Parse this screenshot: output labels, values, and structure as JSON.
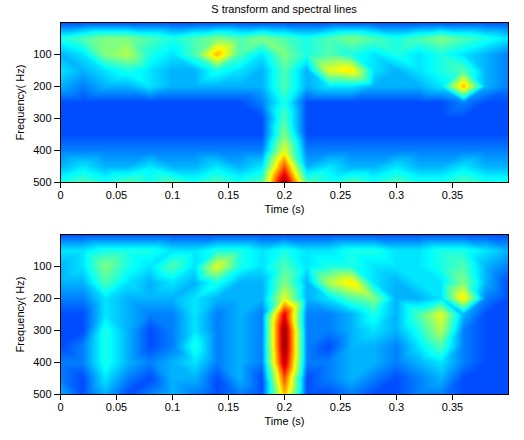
{
  "chart_data": [
    {
      "type": "heatmap",
      "title": "S transform and spectral lines",
      "x_label": "Time (s)",
      "y_label": "Frequency( Hz)",
      "xlim": [
        0,
        0.4
      ],
      "ylim": [
        0,
        500
      ],
      "xticks": [
        0,
        0.05,
        0.1,
        0.15,
        0.2,
        0.25,
        0.3,
        0.35
      ],
      "yticks": [
        100,
        200,
        300,
        400,
        500
      ],
      "zlim": [
        0,
        1
      ],
      "x": [
        0,
        0.02,
        0.04,
        0.06,
        0.08,
        0.1,
        0.12,
        0.14,
        0.16,
        0.18,
        0.2,
        0.22,
        0.24,
        0.26,
        0.28,
        0.3,
        0.32,
        0.34,
        0.36,
        0.38,
        0.4
      ],
      "y": [
        0,
        50,
        100,
        150,
        200,
        250,
        300,
        350,
        400,
        450,
        500
      ],
      "z": [
        [
          0.2,
          0.2,
          0.2,
          0.2,
          0.2,
          0.2,
          0.2,
          0.2,
          0.2,
          0.2,
          0.2,
          0.2,
          0.2,
          0.2,
          0.2,
          0.2,
          0.2,
          0.2,
          0.2,
          0.2,
          0.2
        ],
        [
          0.4,
          0.45,
          0.5,
          0.5,
          0.45,
          0.4,
          0.45,
          0.5,
          0.45,
          0.5,
          0.45,
          0.4,
          0.45,
          0.5,
          0.45,
          0.4,
          0.45,
          0.5,
          0.45,
          0.4,
          0.35
        ],
        [
          0.3,
          0.35,
          0.5,
          0.55,
          0.4,
          0.35,
          0.45,
          0.7,
          0.45,
          0.35,
          0.5,
          0.4,
          0.45,
          0.4,
          0.35,
          0.4,
          0.35,
          0.4,
          0.35,
          0.3,
          0.25
        ],
        [
          0.35,
          0.3,
          0.35,
          0.4,
          0.35,
          0.3,
          0.3,
          0.4,
          0.35,
          0.3,
          0.45,
          0.3,
          0.6,
          0.65,
          0.35,
          0.3,
          0.35,
          0.4,
          0.45,
          0.3,
          0.25
        ],
        [
          0.3,
          0.25,
          0.3,
          0.3,
          0.35,
          0.3,
          0.3,
          0.3,
          0.3,
          0.3,
          0.45,
          0.3,
          0.35,
          0.35,
          0.3,
          0.3,
          0.3,
          0.35,
          0.7,
          0.3,
          0.25
        ],
        [
          0.2,
          0.2,
          0.2,
          0.2,
          0.2,
          0.2,
          0.2,
          0.2,
          0.2,
          0.25,
          0.4,
          0.2,
          0.2,
          0.2,
          0.2,
          0.2,
          0.2,
          0.2,
          0.25,
          0.2,
          0.2
        ],
        [
          0.2,
          0.2,
          0.2,
          0.2,
          0.2,
          0.2,
          0.2,
          0.2,
          0.2,
          0.2,
          0.45,
          0.2,
          0.2,
          0.2,
          0.2,
          0.2,
          0.2,
          0.2,
          0.2,
          0.2,
          0.2
        ],
        [
          0.2,
          0.2,
          0.2,
          0.2,
          0.2,
          0.2,
          0.2,
          0.2,
          0.2,
          0.2,
          0.5,
          0.2,
          0.2,
          0.2,
          0.2,
          0.2,
          0.2,
          0.2,
          0.2,
          0.2,
          0.2
        ],
        [
          0.25,
          0.25,
          0.25,
          0.25,
          0.25,
          0.25,
          0.25,
          0.25,
          0.25,
          0.25,
          0.6,
          0.25,
          0.25,
          0.25,
          0.25,
          0.25,
          0.25,
          0.25,
          0.25,
          0.25,
          0.25
        ],
        [
          0.3,
          0.35,
          0.3,
          0.3,
          0.35,
          0.3,
          0.3,
          0.35,
          0.3,
          0.35,
          0.8,
          0.3,
          0.35,
          0.3,
          0.3,
          0.35,
          0.3,
          0.3,
          0.35,
          0.3,
          0.3
        ],
        [
          0.4,
          0.45,
          0.4,
          0.45,
          0.4,
          0.45,
          0.4,
          0.45,
          0.4,
          0.45,
          1.0,
          0.45,
          0.4,
          0.45,
          0.4,
          0.45,
          0.4,
          0.4,
          0.45,
          0.4,
          0.4
        ]
      ]
    },
    {
      "type": "heatmap",
      "x_label": "Time (s)",
      "y_label": "Frequency( Hz)",
      "xlim": [
        0,
        0.4
      ],
      "ylim": [
        0,
        500
      ],
      "xticks": [
        0,
        0.05,
        0.1,
        0.15,
        0.2,
        0.25,
        0.3,
        0.35
      ],
      "yticks": [
        100,
        200,
        300,
        400,
        500
      ],
      "zlim": [
        0,
        1
      ],
      "x": [
        0,
        0.02,
        0.04,
        0.06,
        0.08,
        0.1,
        0.12,
        0.14,
        0.16,
        0.18,
        0.2,
        0.22,
        0.24,
        0.26,
        0.28,
        0.3,
        0.32,
        0.34,
        0.36,
        0.38,
        0.4
      ],
      "y": [
        0,
        50,
        100,
        150,
        200,
        250,
        300,
        350,
        400,
        450,
        500
      ],
      "z": [
        [
          0.2,
          0.2,
          0.2,
          0.2,
          0.2,
          0.2,
          0.2,
          0.2,
          0.2,
          0.2,
          0.2,
          0.2,
          0.2,
          0.2,
          0.2,
          0.2,
          0.2,
          0.2,
          0.2,
          0.2,
          0.2
        ],
        [
          0.35,
          0.35,
          0.4,
          0.4,
          0.4,
          0.35,
          0.35,
          0.4,
          0.4,
          0.35,
          0.4,
          0.35,
          0.35,
          0.4,
          0.4,
          0.35,
          0.35,
          0.4,
          0.4,
          0.35,
          0.3
        ],
        [
          0.3,
          0.35,
          0.5,
          0.4,
          0.35,
          0.45,
          0.35,
          0.6,
          0.4,
          0.35,
          0.45,
          0.35,
          0.4,
          0.4,
          0.35,
          0.35,
          0.35,
          0.4,
          0.45,
          0.3,
          0.25
        ],
        [
          0.3,
          0.3,
          0.45,
          0.35,
          0.3,
          0.35,
          0.3,
          0.4,
          0.3,
          0.3,
          0.5,
          0.3,
          0.55,
          0.65,
          0.35,
          0.3,
          0.35,
          0.35,
          0.5,
          0.3,
          0.2
        ],
        [
          0.25,
          0.25,
          0.35,
          0.3,
          0.3,
          0.3,
          0.35,
          0.3,
          0.3,
          0.3,
          0.6,
          0.3,
          0.35,
          0.45,
          0.5,
          0.3,
          0.3,
          0.35,
          0.65,
          0.25,
          0.2
        ],
        [
          0.2,
          0.2,
          0.35,
          0.3,
          0.25,
          0.25,
          0.35,
          0.25,
          0.3,
          0.25,
          0.9,
          0.25,
          0.25,
          0.3,
          0.4,
          0.3,
          0.45,
          0.6,
          0.3,
          0.2,
          0.2
        ],
        [
          0.2,
          0.2,
          0.4,
          0.3,
          0.2,
          0.25,
          0.35,
          0.25,
          0.3,
          0.25,
          1.0,
          0.25,
          0.25,
          0.3,
          0.35,
          0.3,
          0.4,
          0.55,
          0.25,
          0.2,
          0.2
        ],
        [
          0.2,
          0.25,
          0.4,
          0.3,
          0.2,
          0.25,
          0.4,
          0.25,
          0.3,
          0.25,
          1.0,
          0.25,
          0.2,
          0.3,
          0.3,
          0.25,
          0.35,
          0.45,
          0.25,
          0.2,
          0.2
        ],
        [
          0.25,
          0.25,
          0.4,
          0.3,
          0.25,
          0.3,
          0.35,
          0.25,
          0.3,
          0.25,
          0.95,
          0.25,
          0.25,
          0.3,
          0.3,
          0.25,
          0.3,
          0.35,
          0.25,
          0.2,
          0.2
        ],
        [
          0.25,
          0.2,
          0.35,
          0.25,
          0.2,
          0.3,
          0.3,
          0.2,
          0.3,
          0.2,
          0.8,
          0.2,
          0.25,
          0.3,
          0.25,
          0.2,
          0.25,
          0.3,
          0.2,
          0.2,
          0.2
        ],
        [
          0.3,
          0.2,
          0.3,
          0.2,
          0.25,
          0.3,
          0.25,
          0.2,
          0.25,
          0.2,
          0.7,
          0.2,
          0.2,
          0.25,
          0.2,
          0.2,
          0.25,
          0.25,
          0.2,
          0.2,
          0.2
        ]
      ]
    }
  ]
}
